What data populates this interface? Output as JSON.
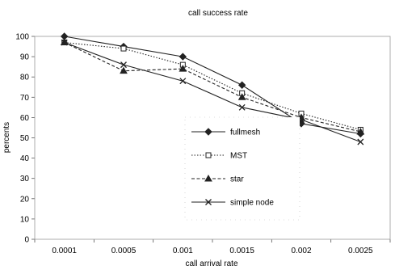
{
  "chart_data": {
    "type": "line",
    "title": "call success rate",
    "xlabel": "call arrival rate",
    "ylabel": "percents",
    "categories": [
      "0.0001",
      "0.0005",
      "0.001",
      "0.0015",
      "0.002",
      "0.0025"
    ],
    "ylim": [
      0,
      100
    ],
    "yticks": [
      0,
      10,
      20,
      30,
      40,
      50,
      60,
      70,
      80,
      90,
      100
    ],
    "grid": false,
    "legend_position": "center-right",
    "series": [
      {
        "name": "fullmesh",
        "marker": "diamond",
        "dash": "solid",
        "values": [
          100,
          95,
          90,
          76,
          57,
          52
        ]
      },
      {
        "name": "MST",
        "marker": "square",
        "dash": "dotted",
        "values": [
          97,
          94,
          86,
          72,
          62,
          54
        ]
      },
      {
        "name": "star",
        "marker": "triangle",
        "dash": "dashed",
        "values": [
          97,
          83,
          84,
          70,
          60,
          53
        ]
      },
      {
        "name": "simple node",
        "marker": "x",
        "dash": "solid",
        "values": [
          97,
          86,
          78,
          65,
          59,
          48
        ]
      }
    ]
  }
}
